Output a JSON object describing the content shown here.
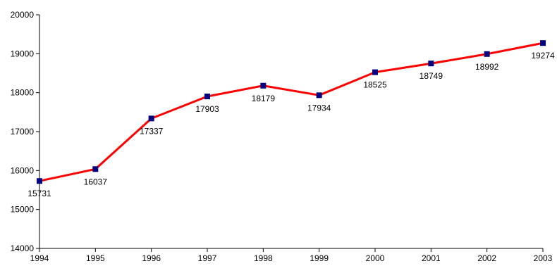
{
  "chart_data": {
    "type": "line",
    "title": "",
    "xlabel": "",
    "ylabel": "",
    "x": [
      "1994",
      "1995",
      "1996",
      "1997",
      "1998",
      "1999",
      "2000",
      "2001",
      "2002",
      "2003"
    ],
    "series": [
      {
        "values": [
          15731,
          16037,
          17337,
          17903,
          18179,
          17934,
          18525,
          18749,
          18992,
          19274
        ],
        "data_labels": [
          "15731",
          "16037",
          "17337",
          "17903",
          "18179",
          "17934",
          "18525",
          "18749",
          "18992",
          "19274"
        ]
      }
    ],
    "ylim": [
      14000,
      20000
    ],
    "yticks": [
      14000,
      15000,
      16000,
      17000,
      18000,
      19000,
      20000
    ],
    "ytick_labels": [
      "14000",
      "15000",
      "16000",
      "17000",
      "18000",
      "19000",
      "20000"
    ],
    "grid": false,
    "legend": "none",
    "marker": "square"
  },
  "colors": {
    "line": "#ff0000",
    "marker": "#000080",
    "axis": "#000000"
  }
}
